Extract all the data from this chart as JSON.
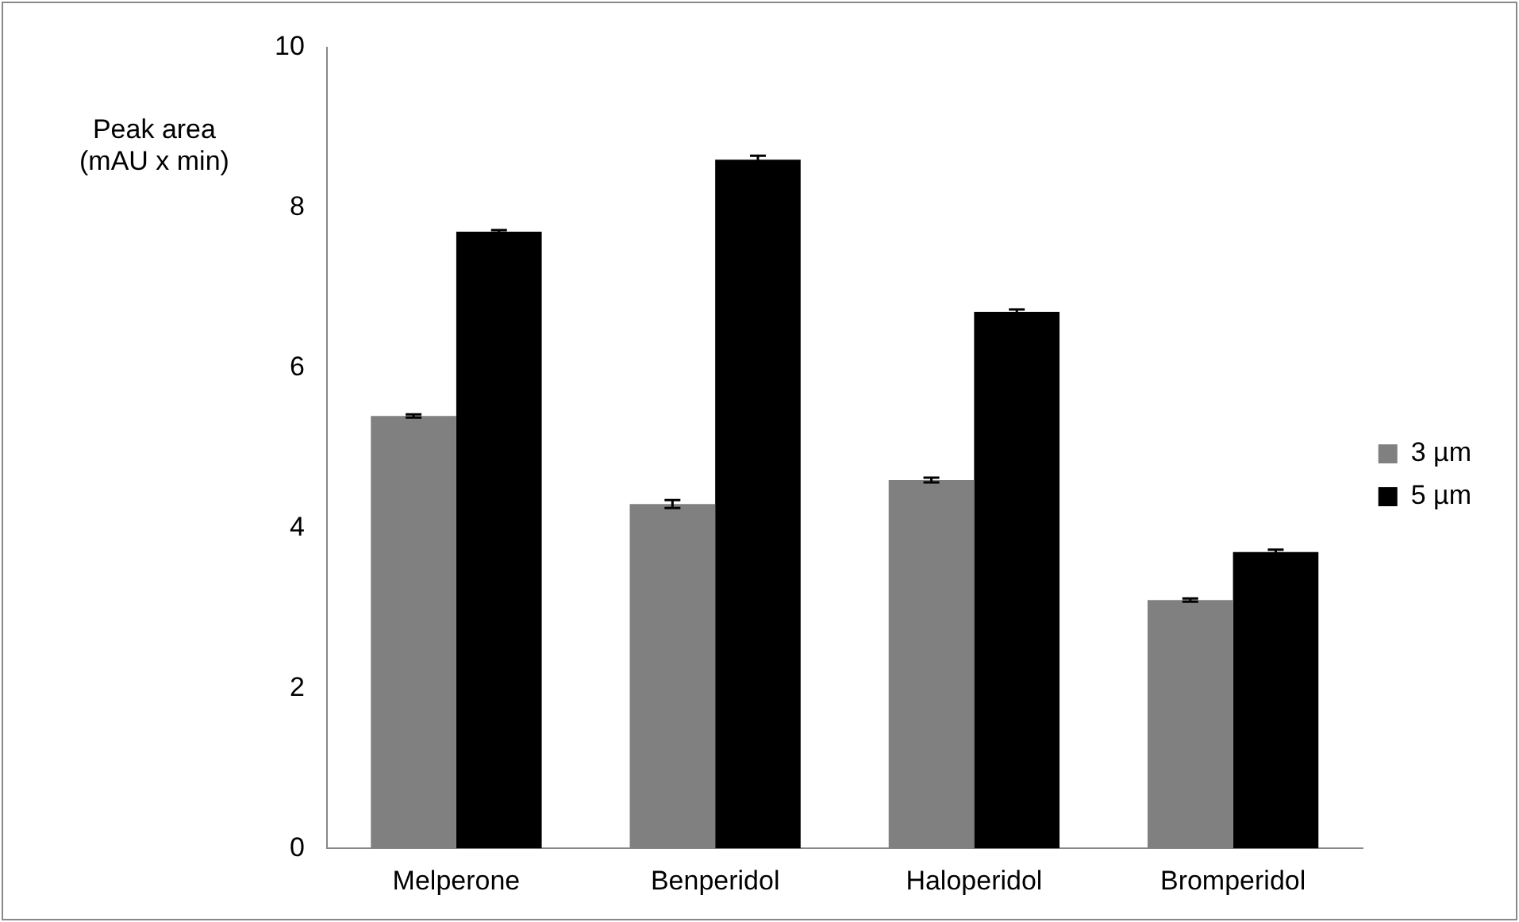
{
  "chart_data": {
    "type": "bar",
    "ylabel": "Peak area\n(mAU x min)",
    "categories": [
      "Melperone",
      "Benperidol",
      "Haloperidol",
      "Bromperidol"
    ],
    "series": [
      {
        "name": "3 µm",
        "color": "#808080",
        "values": [
          5.4,
          4.3,
          4.6,
          3.1
        ],
        "errors": [
          0.02,
          0.05,
          0.03,
          0.02
        ]
      },
      {
        "name": "5 µm",
        "color": "#000000",
        "values": [
          7.7,
          8.6,
          6.7,
          3.7
        ],
        "errors": [
          0.02,
          0.05,
          0.03,
          0.03
        ]
      }
    ],
    "ylim": [
      0,
      10
    ],
    "yticks": [
      0,
      2,
      4,
      6,
      8,
      10
    ],
    "grid": false,
    "legend": "right"
  }
}
